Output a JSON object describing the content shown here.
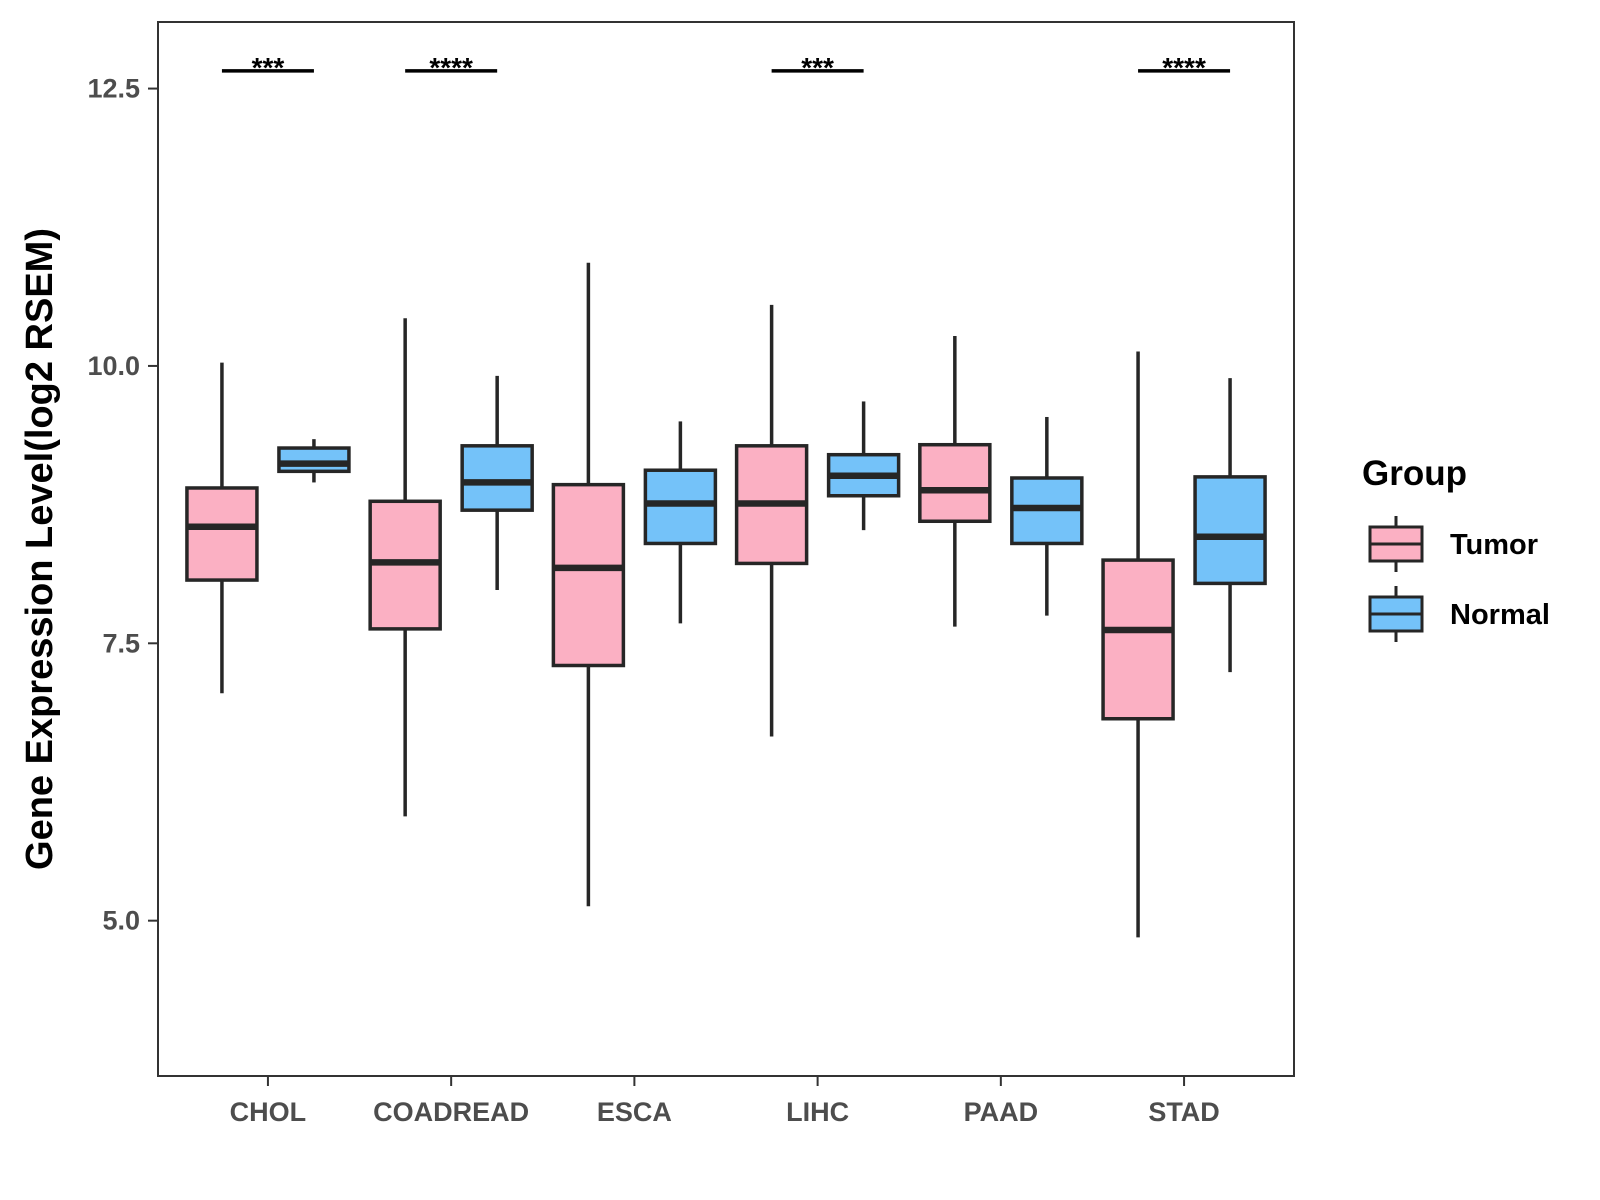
{
  "chart_data": {
    "type": "boxplot",
    "title": "",
    "xlabel": "",
    "ylabel": "Gene Expression Level(log2 RSEM)",
    "ylim": [
      3.6,
      13.1
    ],
    "y_ticks": [
      5.0,
      7.5,
      10.0,
      12.5
    ],
    "y_tick_labels": [
      "5.0",
      "7.5",
      "10.0",
      "12.5"
    ],
    "categories": [
      "CHOL",
      "COADREAD",
      "ESCA",
      "LIHC",
      "PAAD",
      "STAD"
    ],
    "legend": {
      "title": "Group",
      "position": "right",
      "entries": [
        {
          "label": "Tumor",
          "color": "#FBB0C3"
        },
        {
          "label": "Normal",
          "color": "#74C2F9"
        }
      ]
    },
    "series": [
      {
        "name": "Tumor",
        "color": "#FBB0C3",
        "boxes": [
          {
            "category": "CHOL",
            "min": 7.05,
            "q1": 8.07,
            "median": 8.55,
            "q3": 8.9,
            "max": 10.03
          },
          {
            "category": "COADREAD",
            "min": 5.94,
            "q1": 7.63,
            "median": 8.23,
            "q3": 8.78,
            "max": 10.43
          },
          {
            "category": "ESCA",
            "min": 5.13,
            "q1": 7.3,
            "median": 8.18,
            "q3": 8.93,
            "max": 10.93
          },
          {
            "category": "LIHC",
            "min": 6.66,
            "q1": 8.22,
            "median": 8.76,
            "q3": 9.28,
            "max": 10.55
          },
          {
            "category": "PAAD",
            "min": 7.65,
            "q1": 8.6,
            "median": 8.88,
            "q3": 9.29,
            "max": 10.27
          },
          {
            "category": "STAD",
            "min": 4.85,
            "q1": 6.82,
            "median": 7.62,
            "q3": 8.25,
            "max": 10.13
          }
        ]
      },
      {
        "name": "Normal",
        "color": "#74C2F9",
        "boxes": [
          {
            "category": "CHOL",
            "min": 8.95,
            "q1": 9.05,
            "median": 9.12,
            "q3": 9.26,
            "max": 9.34
          },
          {
            "category": "COADREAD",
            "min": 7.98,
            "q1": 8.7,
            "median": 8.95,
            "q3": 9.28,
            "max": 9.91
          },
          {
            "category": "ESCA",
            "min": 7.68,
            "q1": 8.4,
            "median": 8.76,
            "q3": 9.06,
            "max": 9.5
          },
          {
            "category": "LIHC",
            "min": 8.52,
            "q1": 8.83,
            "median": 9.01,
            "q3": 9.2,
            "max": 9.68
          },
          {
            "category": "PAAD",
            "min": 7.75,
            "q1": 8.4,
            "median": 8.72,
            "q3": 8.99,
            "max": 9.54
          },
          {
            "category": "STAD",
            "min": 7.24,
            "q1": 8.04,
            "median": 8.46,
            "q3": 9.0,
            "max": 9.89
          }
        ]
      }
    ],
    "significance": [
      {
        "category": "CHOL",
        "label": "***"
      },
      {
        "category": "COADREAD",
        "label": "****"
      },
      {
        "category": "LIHC",
        "label": "***"
      },
      {
        "category": "STAD",
        "label": "****"
      }
    ],
    "significance_y": 12.66,
    "grid": false
  }
}
